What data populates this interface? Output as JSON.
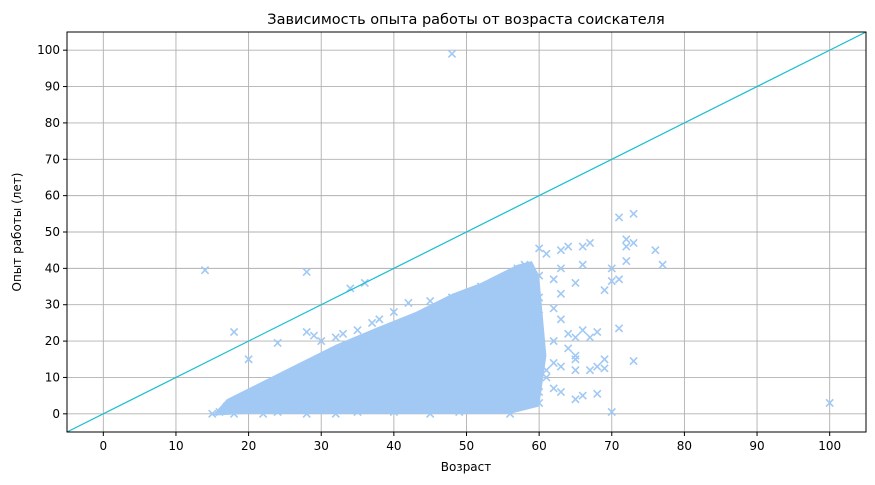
{
  "chart_data": {
    "type": "scatter",
    "title": "Зависимость опыта работы от возраста соискателя",
    "xlabel": "Возраст",
    "ylabel": "Опыт работы (лет)",
    "xlim": [
      -5,
      105
    ],
    "ylim": [
      -5,
      105
    ],
    "xticks": [
      0,
      10,
      20,
      30,
      40,
      50,
      60,
      70,
      80,
      90,
      100
    ],
    "yticks": [
      0,
      10,
      20,
      30,
      40,
      50,
      60,
      70,
      80,
      90,
      100
    ],
    "grid": true,
    "colors": {
      "points": "#a1c9f4",
      "reference_line": "#17becf",
      "grid": "#b0b0b0"
    },
    "reference_line": {
      "x": [
        -5,
        105
      ],
      "y": [
        -5,
        105
      ]
    },
    "series": [
      {
        "marker": "x",
        "points": [
          [
            14,
            39.5
          ],
          [
            28,
            39
          ],
          [
            48,
            99
          ],
          [
            34,
            34.5
          ],
          [
            36,
            36
          ],
          [
            18,
            22.5
          ],
          [
            20,
            15
          ],
          [
            24,
            19.5
          ],
          [
            28,
            22.5
          ],
          [
            29,
            21.5
          ],
          [
            30,
            20
          ],
          [
            32,
            21
          ],
          [
            33,
            22
          ],
          [
            35,
            23
          ],
          [
            37,
            25
          ],
          [
            38,
            26
          ],
          [
            40,
            28
          ],
          [
            42,
            30.5
          ],
          [
            45,
            31
          ],
          [
            48,
            32
          ],
          [
            50,
            33
          ],
          [
            52,
            35
          ],
          [
            55,
            37
          ],
          [
            57,
            40
          ],
          [
            58,
            41
          ],
          [
            60,
            45.5
          ],
          [
            61,
            44
          ],
          [
            63,
            45
          ],
          [
            64,
            46
          ],
          [
            66,
            46
          ],
          [
            67,
            47
          ],
          [
            66,
            41
          ],
          [
            63,
            40
          ],
          [
            60,
            38
          ],
          [
            62,
            37
          ],
          [
            65,
            36
          ],
          [
            63,
            33
          ],
          [
            60,
            32
          ],
          [
            58,
            30
          ],
          [
            62,
            29
          ],
          [
            60,
            27
          ],
          [
            63,
            26
          ],
          [
            64,
            22
          ],
          [
            62,
            20
          ],
          [
            65,
            21
          ],
          [
            66,
            23
          ],
          [
            67,
            21
          ],
          [
            68,
            22.5
          ],
          [
            64,
            18
          ],
          [
            65,
            16
          ],
          [
            65,
            15
          ],
          [
            62,
            14
          ],
          [
            63,
            13
          ],
          [
            61,
            12
          ],
          [
            65,
            12
          ],
          [
            67,
            12
          ],
          [
            69,
            12.5
          ],
          [
            68,
            13
          ],
          [
            69,
            15
          ],
          [
            70,
            40
          ],
          [
            69,
            34
          ],
          [
            70,
            36.5
          ],
          [
            71,
            54
          ],
          [
            72,
            48
          ],
          [
            73,
            55
          ],
          [
            72,
            46
          ],
          [
            73,
            47
          ],
          [
            72,
            42
          ],
          [
            71,
            37
          ],
          [
            76,
            45
          ],
          [
            77,
            41
          ],
          [
            71,
            23.5
          ],
          [
            73,
            14.5
          ],
          [
            70,
            0.5
          ],
          [
            100,
            3
          ],
          [
            61,
            10
          ],
          [
            62,
            7
          ],
          [
            63,
            6
          ],
          [
            66,
            5
          ],
          [
            68,
            5.5
          ],
          [
            65,
            4
          ],
          [
            60,
            6
          ],
          [
            58,
            8
          ],
          [
            56,
            9
          ],
          [
            54,
            5
          ],
          [
            52,
            3
          ],
          [
            50,
            2
          ],
          [
            53,
            1
          ],
          [
            56,
            0
          ],
          [
            55,
            2.5
          ],
          [
            51,
            1
          ],
          [
            49,
            0.5
          ],
          [
            47,
            2
          ],
          [
            45,
            0
          ],
          [
            42,
            1
          ],
          [
            40,
            0.5
          ],
          [
            38,
            1
          ],
          [
            35,
            0.5
          ],
          [
            32,
            0
          ],
          [
            30,
            1
          ],
          [
            28,
            0
          ],
          [
            26,
            1
          ],
          [
            24,
            0.5
          ],
          [
            22,
            0
          ],
          [
            20,
            1
          ],
          [
            18,
            0
          ],
          [
            16,
            0.5
          ],
          [
            15,
            0
          ],
          [
            17,
            2
          ],
          [
            19,
            3
          ],
          [
            21,
            4
          ],
          [
            23,
            6
          ],
          [
            25,
            7
          ],
          [
            27,
            9
          ],
          [
            29,
            11
          ],
          [
            31,
            13
          ],
          [
            33,
            15
          ],
          [
            35,
            17
          ],
          [
            37,
            18
          ],
          [
            39,
            20
          ],
          [
            41,
            22
          ],
          [
            43,
            24
          ],
          [
            45,
            26
          ],
          [
            47,
            27
          ],
          [
            49,
            29
          ],
          [
            51,
            30
          ],
          [
            53,
            32
          ],
          [
            55,
            33
          ],
          [
            57,
            35
          ],
          [
            59,
            37
          ],
          [
            40,
            10
          ],
          [
            45,
            15
          ],
          [
            50,
            20
          ],
          [
            55,
            25
          ],
          [
            58,
            20
          ],
          [
            60,
            15
          ],
          [
            57,
            12
          ],
          [
            52,
            14
          ],
          [
            48,
            10
          ],
          [
            44,
            8
          ],
          [
            40,
            5
          ],
          [
            36,
            4
          ],
          [
            33,
            8
          ],
          [
            30,
            6
          ],
          [
            27,
            4
          ],
          [
            24,
            3
          ],
          [
            35,
            10
          ],
          [
            38,
            14
          ],
          [
            42,
            18
          ],
          [
            46,
            22
          ],
          [
            50,
            26
          ],
          [
            54,
            28
          ],
          [
            56,
            18
          ],
          [
            53,
            8
          ],
          [
            59,
            5
          ],
          [
            60,
            3
          ],
          [
            48,
            5
          ],
          [
            44,
            12
          ],
          [
            39,
            7
          ]
        ]
      }
    ]
  }
}
